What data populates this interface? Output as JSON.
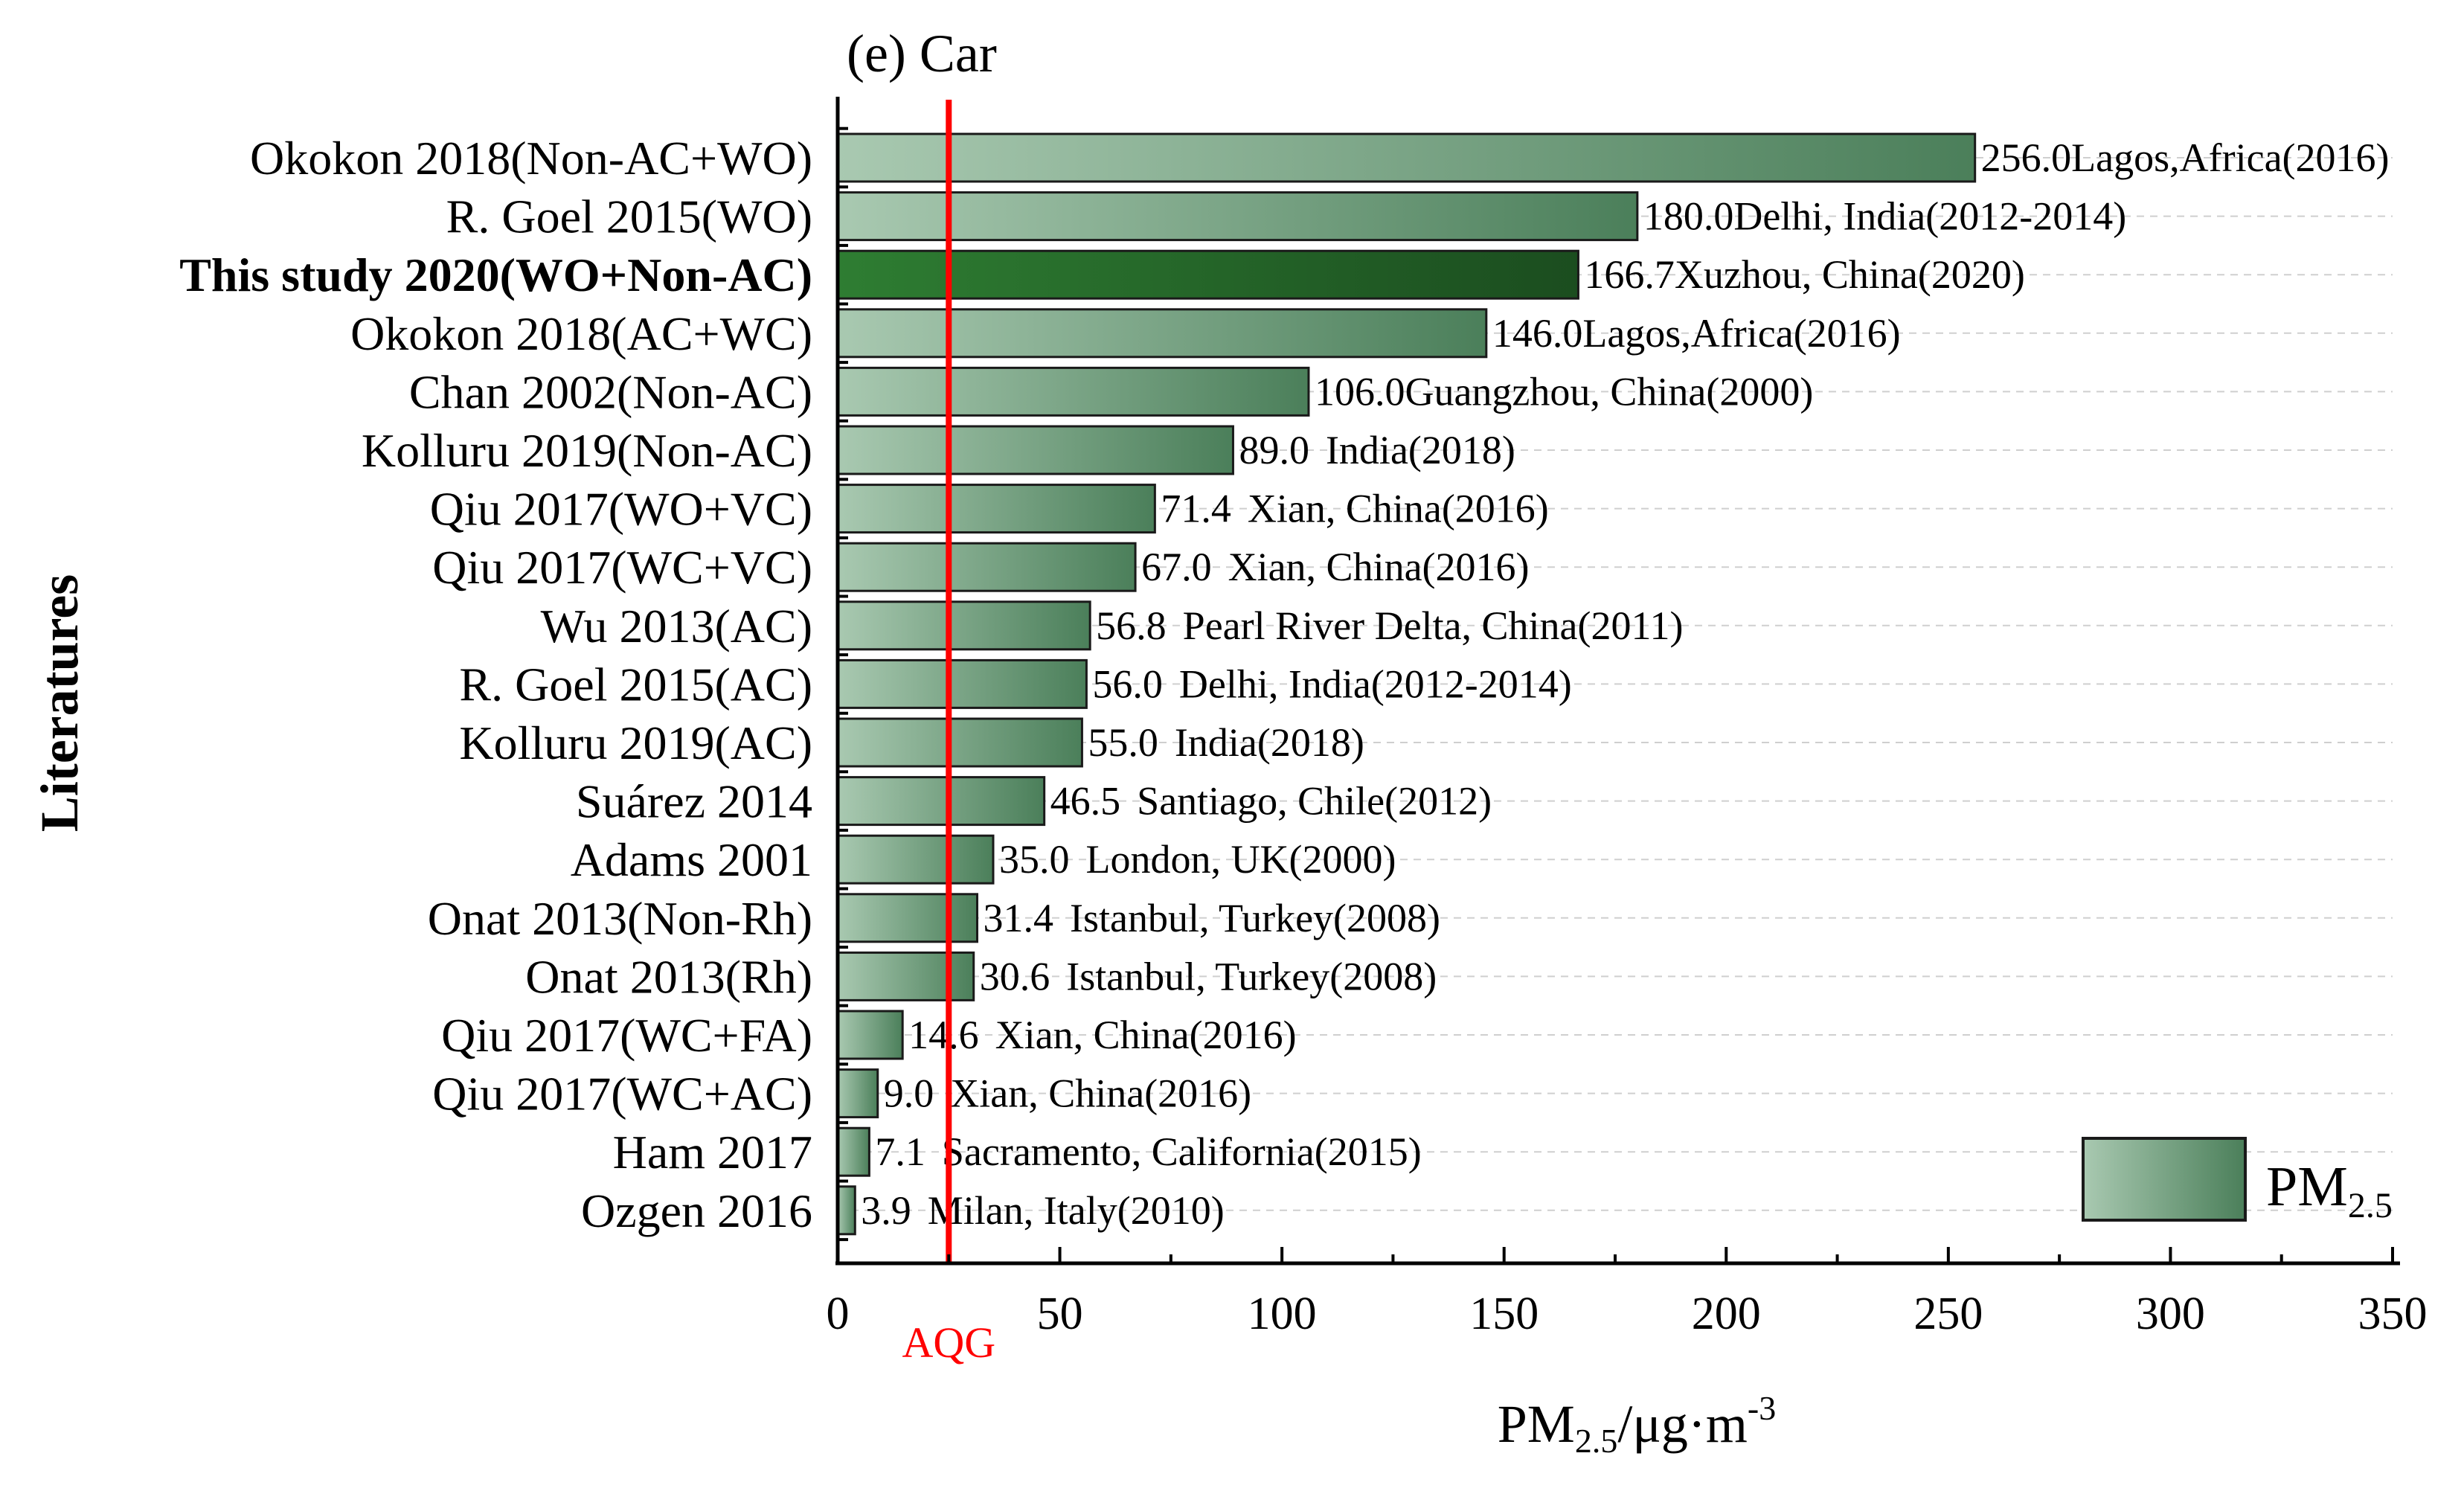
{
  "chart_data": {
    "type": "bar",
    "orientation": "horizontal",
    "title": "(e) Car",
    "ylabel": "Literatures",
    "xlabel_parts": {
      "base": "PM",
      "sub": "2.5",
      "unit": "/μg·m",
      "sup": "-3"
    },
    "xlim": [
      0,
      350
    ],
    "xticks": [
      0,
      50,
      100,
      150,
      200,
      250,
      300,
      350
    ],
    "grid": "horizontal dashed",
    "reference_line": {
      "label": "AQG",
      "value": 25,
      "color": "#ff0000"
    },
    "legend": {
      "position": "bottom-right",
      "label_base": "PM",
      "label_sub": "2.5"
    },
    "colors": {
      "gradient_start": "#a9c9b1",
      "gradient_end": "#4b7f5a",
      "highlight_start": "#2e7d32",
      "highlight_end": "#1b4d1f",
      "bar_border": "#1a1a1a"
    },
    "categories": [
      "Okokon 2018(Non-AC+WO)",
      "R. Goel 2015(WO)",
      "This study 2020(WO+Non-AC)",
      "Okokon 2018(AC+WC)",
      "Chan 2002(Non-AC)",
      "Kolluru 2019(Non-AC)",
      "Qiu 2017(WO+VC)",
      "Qiu 2017(WC+VC)",
      "Wu 2013(AC)",
      "R. Goel 2015(AC)",
      "Kolluru 2019(AC)",
      "Suárez 2014",
      "Adams 2001",
      "Onat 2013(Non-Rh)",
      "Onat 2013(Rh)",
      "Qiu 2017(WC+FA)",
      "Qiu 2017(WC+AC)",
      "Ham 2017",
      "Ozgen 2016"
    ],
    "values": [
      256.0,
      180.0,
      166.7,
      146.0,
      106.0,
      89.0,
      71.4,
      67.0,
      56.8,
      56.0,
      55.0,
      46.5,
      35.0,
      31.4,
      30.6,
      14.6,
      9.0,
      7.1,
      3.9
    ],
    "value_labels": [
      "256.0",
      "180.0",
      "166.7",
      "146.0",
      "106.0",
      "89.0",
      "71.4",
      "67.0",
      "56.8",
      "56.0",
      "55.0",
      "46.5",
      "35.0",
      "31.4",
      "30.6",
      "14.6",
      "9.0",
      "7.1",
      "3.9"
    ],
    "locations": [
      "Lagos,Africa(2016)",
      "Delhi, India(2012-2014)",
      "Xuzhou, China(2020)",
      "Lagos,Africa(2016)",
      "Guangzhou, China(2000)",
      "India(2018)",
      "Xian, China(2016)",
      "Xian, China(2016)",
      "Pearl River Delta, China(2011)",
      "Delhi, India(2012-2014)",
      "India(2018)",
      "Santiago, Chile(2012)",
      "London, UK(2000)",
      "Istanbul, Turkey(2008)",
      "Istanbul, Turkey(2008)",
      "Xian, China(2016)",
      "Xian, China(2016)",
      "Sacramento, California(2015)",
      "Milan, Italy(2010)"
    ],
    "highlight_index": 2
  }
}
